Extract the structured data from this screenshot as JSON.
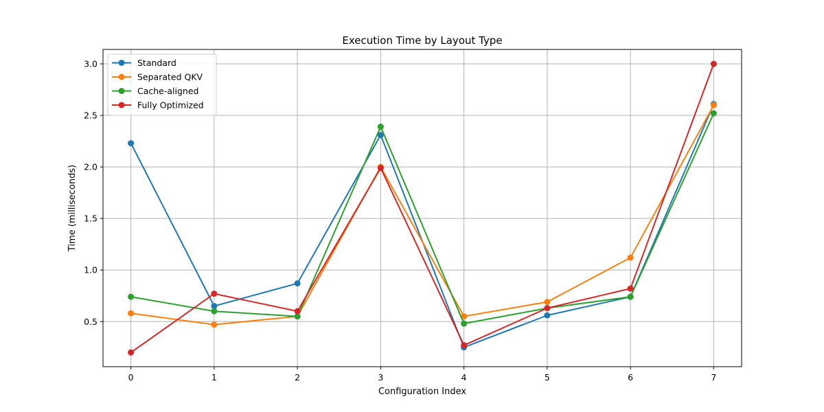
{
  "chart_data": {
    "type": "line",
    "title": "Execution Time by Layout Type",
    "xlabel": "Configuration Index",
    "ylabel": "Time (milliseconds)",
    "x": [
      0,
      1,
      2,
      3,
      4,
      5,
      6,
      7
    ],
    "xlim": [
      -0.335,
      7.335
    ],
    "ylim": [
      0.062,
      3.14
    ],
    "yticks": [
      0.5,
      1.0,
      1.5,
      2.0,
      2.5,
      3.0
    ],
    "yticklabels": [
      "0.5",
      "1.0",
      "1.5",
      "2.0",
      "2.5",
      "3.0"
    ],
    "grid": true,
    "legend_position": "top-left",
    "series": [
      {
        "name": "Standard",
        "color": "#1f77b4",
        "values": [
          2.23,
          0.65,
          0.87,
          2.31,
          0.25,
          0.56,
          0.74,
          2.61
        ]
      },
      {
        "name": "Separated QKV",
        "color": "#ff7f0e",
        "values": [
          0.58,
          0.47,
          0.55,
          2.0,
          0.55,
          0.69,
          1.12,
          2.6
        ]
      },
      {
        "name": "Cache-aligned",
        "color": "#2ca02c",
        "values": [
          0.74,
          0.6,
          0.55,
          2.39,
          0.48,
          0.63,
          0.74,
          2.52
        ]
      },
      {
        "name": "Fully Optimized",
        "color": "#d62728",
        "values": [
          0.2,
          0.77,
          0.6,
          1.99,
          0.27,
          0.63,
          0.82,
          3.0
        ]
      }
    ]
  }
}
